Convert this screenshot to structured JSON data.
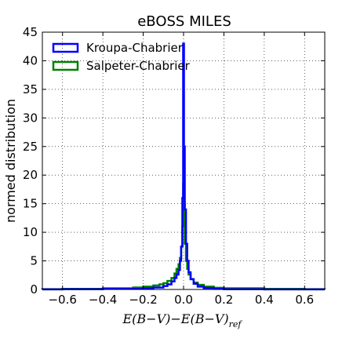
{
  "chart_data": {
    "type": "histogram-step",
    "title": "eBOSS MILES",
    "xlabel": "E(B−V)−E(B−V)",
    "xlabel_sub": "ref",
    "ylabel": "normed distribution",
    "xlim": [
      -0.7,
      0.7
    ],
    "ylim": [
      0,
      45
    ],
    "xticks": [
      -0.6,
      -0.4,
      -0.2,
      0.0,
      0.2,
      0.4,
      0.6
    ],
    "xtick_labels": [
      "−0.6",
      "−0.4",
      "−0.2",
      "0.0",
      "0.2",
      "0.4",
      "0.6"
    ],
    "yticks": [
      0,
      5,
      10,
      15,
      20,
      25,
      30,
      35,
      40,
      45
    ],
    "ytick_labels": [
      "0",
      "5",
      "10",
      "15",
      "20",
      "25",
      "30",
      "35",
      "40",
      "45"
    ],
    "grid": true,
    "legend_position": "top-left",
    "series": [
      {
        "name": "Kroupa-Chabrier",
        "color": "#0000ff",
        "x": [
          -0.7,
          -0.6,
          -0.4,
          -0.2,
          -0.15,
          -0.1,
          -0.08,
          -0.06,
          -0.045,
          -0.035,
          -0.025,
          -0.018,
          -0.012,
          -0.006,
          -0.002,
          0.002,
          0.006,
          0.012,
          0.018,
          0.025,
          0.035,
          0.05,
          0.07,
          0.1,
          0.15,
          0.2,
          0.4,
          0.6,
          0.7
        ],
        "y": [
          0.02,
          0.05,
          0.1,
          0.2,
          0.35,
          0.6,
          0.9,
          1.4,
          2.0,
          2.6,
          3.4,
          5.0,
          7.5,
          16.0,
          43.0,
          25.0,
          14.0,
          8.0,
          5.0,
          3.0,
          1.8,
          1.0,
          0.5,
          0.25,
          0.12,
          0.05,
          0.02,
          0.01,
          0.01
        ]
      },
      {
        "name": "Salpeter-Chabrier",
        "color": "#008000",
        "x": [
          -0.7,
          -0.6,
          -0.4,
          -0.25,
          -0.2,
          -0.15,
          -0.12,
          -0.1,
          -0.08,
          -0.06,
          -0.045,
          -0.035,
          -0.025,
          -0.018,
          -0.012,
          -0.006,
          -0.002,
          0.002,
          0.006,
          0.012,
          0.018,
          0.025,
          0.035,
          0.05,
          0.07,
          0.1,
          0.15,
          0.2,
          0.4,
          0.6,
          0.7
        ],
        "y": [
          0.05,
          0.1,
          0.2,
          0.35,
          0.5,
          0.7,
          0.9,
          1.1,
          1.5,
          2.0,
          2.8,
          3.6,
          4.4,
          5.5,
          7.5,
          11.0,
          18.5,
          15.0,
          8.0,
          5.0,
          3.6,
          2.6,
          1.8,
          1.2,
          0.8,
          0.5,
          0.3,
          0.2,
          0.1,
          0.05,
          0.03
        ]
      }
    ]
  }
}
